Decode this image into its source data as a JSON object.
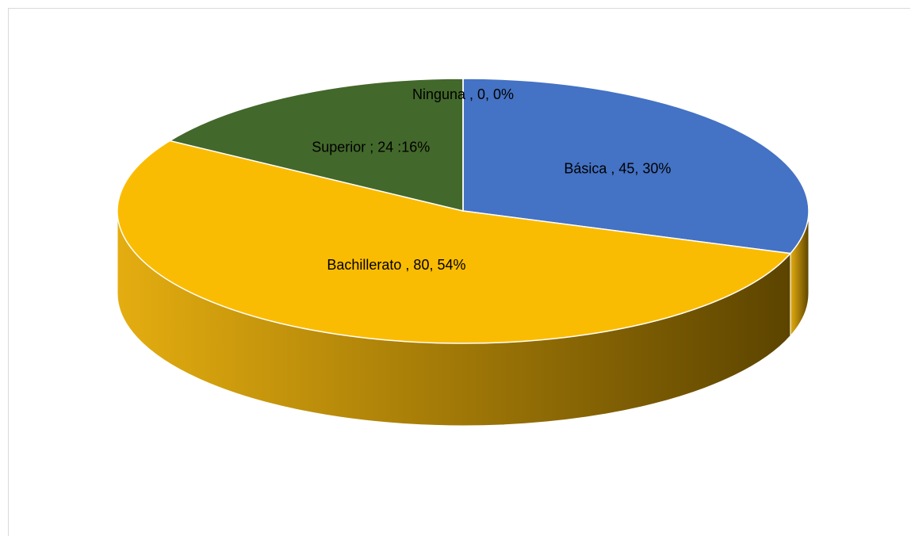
{
  "chart_data": {
    "type": "pie",
    "style": "3d",
    "legend": "none",
    "slices": [
      {
        "name": "Básica",
        "value": 45,
        "percent": 30,
        "label": "Básica , 45, 30%",
        "color": "#4472c4"
      },
      {
        "name": "Bachillerato",
        "value": 80,
        "percent": 54,
        "label": "Bachillerato , 80, 54%",
        "color": "#fabc02"
      },
      {
        "name": "Superior",
        "value": 24,
        "percent": 16,
        "label": "Superior ; 24 :16%",
        "color": "#43682b"
      },
      {
        "name": "Ninguna",
        "value": 0,
        "percent": 0,
        "label": "Ninguna , 0, 0%",
        "color": "#a5a5a5"
      }
    ]
  }
}
